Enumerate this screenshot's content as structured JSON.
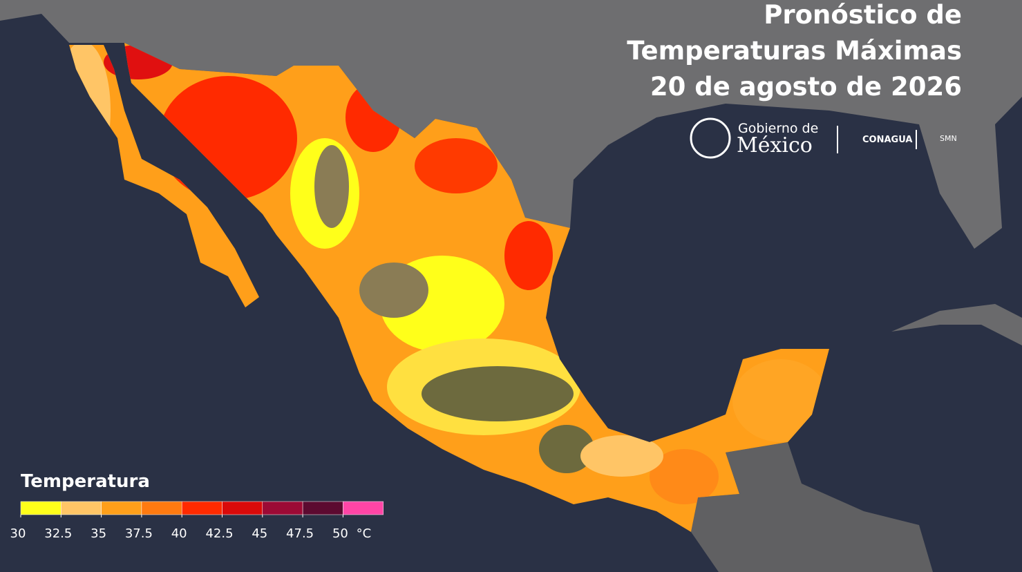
{
  "header": {
    "title_lines": [
      "Pronóstico de",
      "Temperaturas Máximas",
      "20 de agosto de 2026"
    ]
  },
  "logos": {
    "gobierno": "Gobierno de",
    "mexico": "México",
    "conagua": "CONAGUA",
    "smn": "SMN"
  },
  "legend": {
    "title": "Temperatura",
    "unit": "°C",
    "colors": [
      "#ffff1a",
      "#ffc566",
      "#ff9f1a",
      "#ff7a10",
      "#ff2a00",
      "#d90a0a",
      "#9c0a35",
      "#5c0a30",
      "#ff45a6"
    ],
    "ticks": [
      30,
      32.5,
      35,
      37.5,
      40,
      42.5,
      45,
      47.5,
      50
    ]
  }
}
